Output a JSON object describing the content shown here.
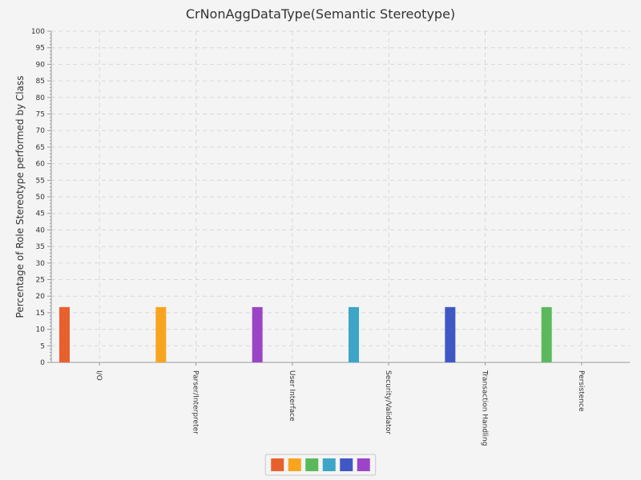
{
  "chart_data": {
    "type": "bar",
    "title": "CrNonAggDataType(Semantic Stereotype)",
    "xlabel": "",
    "ylabel": "Percentage of Role Stereotype performed by Class",
    "ylim": [
      0,
      100
    ],
    "yticks": [
      0,
      5,
      10,
      15,
      20,
      25,
      30,
      35,
      40,
      45,
      50,
      55,
      60,
      65,
      70,
      75,
      80,
      85,
      90,
      95,
      100
    ],
    "categories": [
      "I/O",
      "Parser/Interpreter",
      "User Interface",
      "Security/Validator",
      "Transaction Handling",
      "Persistence"
    ],
    "values": [
      16.7,
      16.7,
      16.7,
      16.7,
      16.7,
      16.7
    ],
    "colors": [
      "#e8602c",
      "#f9a41e",
      "#9b45c6",
      "#3da5c8",
      "#4058c3",
      "#5cb85c"
    ],
    "legend": {
      "placement": "bottom-center",
      "swatches": [
        "#e8602c",
        "#f9a41e",
        "#5cb85c",
        "#3da5c8",
        "#4058c3",
        "#9b45c6"
      ]
    },
    "grid": true
  }
}
